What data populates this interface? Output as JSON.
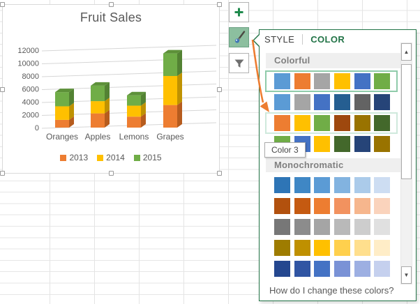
{
  "chart_data": {
    "type": "bar",
    "variant": "3d-stacked-column",
    "title": "Fruit Sales",
    "categories": [
      "Oranges",
      "Apples",
      "Lemons",
      "Grapes"
    ],
    "series": [
      {
        "name": "2013",
        "color": "#ED7D31",
        "side_color": "#B65C1E",
        "top_color": "#C96724",
        "values": [
          1200,
          2200,
          1700,
          3500
        ]
      },
      {
        "name": "2014",
        "color": "#FFC000",
        "side_color": "#BF9202",
        "top_color": "#D3A303",
        "values": [
          2100,
          1900,
          1700,
          4500
        ]
      },
      {
        "name": "2015",
        "color": "#70AD47",
        "side_color": "#538233",
        "top_color": "#5D9139",
        "values": [
          2200,
          2400,
          1600,
          3500
        ]
      }
    ],
    "ylim": [
      0,
      12000
    ],
    "ytick_step": 2000,
    "grid": true,
    "legend_position": "bottom"
  },
  "chart_toolbar": {
    "buttons": [
      {
        "icon": "plus",
        "active": false
      },
      {
        "icon": "paintbrush",
        "active": true
      },
      {
        "icon": "funnel",
        "active": false
      }
    ]
  },
  "style_panel": {
    "tabs": [
      {
        "label": "STYLE",
        "active": false
      },
      {
        "label": "COLOR",
        "active": true
      }
    ],
    "accent_color": "#217346",
    "sections": [
      {
        "title": "Colorful",
        "rows": [
          {
            "state": "selected",
            "colors": [
              "#5B9BD5",
              "#ED7D31",
              "#A5A5A5",
              "#FFC000",
              "#4472C4",
              "#70AD47"
            ]
          },
          {
            "state": "normal",
            "colors": [
              "#5B9BD5",
              "#A5A5A5",
              "#4472C4",
              "#255E91",
              "#636363",
              "#264478"
            ]
          },
          {
            "state": "hover",
            "colors": [
              "#ED7D31",
              "#FFC000",
              "#70AD47",
              "#9E480E",
              "#997300",
              "#43682B"
            ]
          },
          {
            "state": "normal",
            "colors": [
              "#70AD47",
              "#4472C4",
              "#FFC000",
              "#43682B",
              "#264478",
              "#997300"
            ]
          }
        ]
      },
      {
        "title": "Monochromatic",
        "rows": [
          {
            "state": "normal",
            "colors": [
              "#2E75B6",
              "#3F87C5",
              "#5B9BD5",
              "#82B3E0",
              "#ABCBEA",
              "#CDDDF2"
            ]
          },
          {
            "state": "normal",
            "colors": [
              "#B2510E",
              "#C55A11",
              "#ED7D31",
              "#F2925F",
              "#F6B68D",
              "#FAD3BC"
            ]
          },
          {
            "state": "normal",
            "colors": [
              "#777777",
              "#8C8C8C",
              "#A5A5A5",
              "#B9B9B9",
              "#CDCDCD",
              "#E0E0E0"
            ]
          },
          {
            "state": "normal",
            "colors": [
              "#9E7C00",
              "#BF9000",
              "#FFC000",
              "#FFD04D",
              "#FFDF8D",
              "#FFEDC7"
            ]
          },
          {
            "state": "normal",
            "colors": [
              "#24478F",
              "#3055A3",
              "#4472C4",
              "#7A92D6",
              "#9DAFE2",
              "#C5D0EE"
            ]
          }
        ]
      }
    ],
    "tooltip": {
      "text": "Color 3"
    },
    "footer_link": "How do I change these colors?"
  },
  "annotation_arrow": {
    "color": "#ED7D31"
  }
}
